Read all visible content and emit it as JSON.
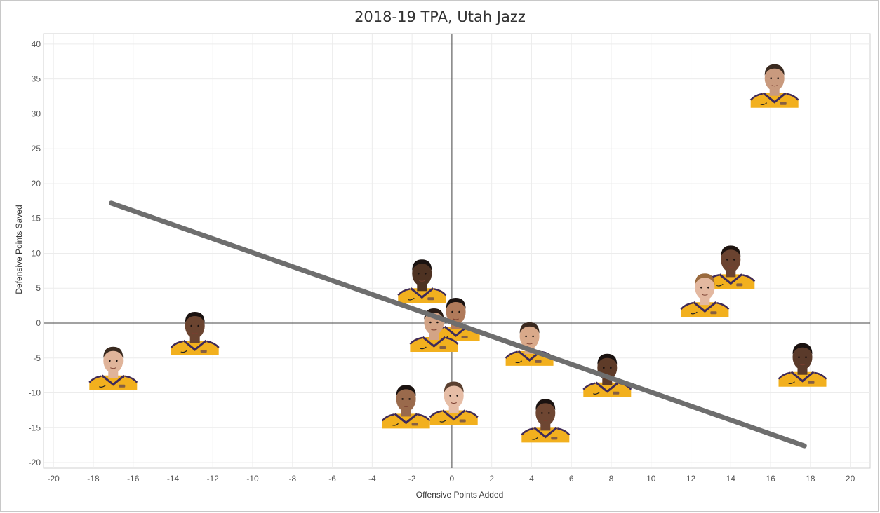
{
  "chart_data": {
    "type": "scatter",
    "title": "2018-19 TPA, Utah Jazz",
    "xlabel": "Offensive Points Added",
    "ylabel": "Defensive Points Saved",
    "xlim": [
      -20.5,
      21
    ],
    "ylim": [
      -20.8,
      41.5
    ],
    "xticks": [
      -20,
      -18,
      -16,
      -14,
      -12,
      -10,
      -8,
      -6,
      -4,
      -2,
      0,
      2,
      4,
      6,
      8,
      10,
      12,
      14,
      16,
      18,
      20
    ],
    "yticks": [
      -20,
      -15,
      -10,
      -5,
      0,
      5,
      10,
      15,
      20,
      25,
      30,
      35,
      40
    ],
    "grid": true,
    "points": [
      {
        "x": 16.2,
        "y": 34.5,
        "marker": "player-headshot",
        "skin": "#c99a7e",
        "hair": "#3a2a20"
      },
      {
        "x": 14.0,
        "y": 8.5,
        "marker": "player-headshot",
        "skin": "#6b4330",
        "hair": "#1e1410"
      },
      {
        "x": 12.7,
        "y": 4.5,
        "marker": "player-headshot",
        "skin": "#e3b8a0",
        "hair": "#9a6a3e"
      },
      {
        "x": 17.6,
        "y": -5.5,
        "marker": "player-headshot",
        "skin": "#5a3a2a",
        "hair": "#1a1210"
      },
      {
        "x": 7.8,
        "y": -7.0,
        "marker": "player-headshot",
        "skin": "#5e3b28",
        "hair": "#1a1210"
      },
      {
        "x": 3.9,
        "y": -2.5,
        "marker": "player-headshot",
        "skin": "#d9a98a",
        "hair": "#3b2a20"
      },
      {
        "x": 4.7,
        "y": -13.5,
        "marker": "player-headshot",
        "skin": "#6e4632",
        "hair": "#1a1210"
      },
      {
        "x": 0.1,
        "y": -11.0,
        "marker": "player-headshot",
        "skin": "#e6bda6",
        "hair": "#5a4030"
      },
      {
        "x": -2.3,
        "y": -11.5,
        "marker": "player-headshot",
        "skin": "#9a6a4c",
        "hair": "#1a1210"
      },
      {
        "x": -1.5,
        "y": 6.5,
        "marker": "player-headshot",
        "skin": "#4e3222",
        "hair": "#1a1210"
      },
      {
        "x": 0.2,
        "y": 1.0,
        "marker": "player-headshot",
        "skin": "#b07a5a",
        "hair": "#1a1210"
      },
      {
        "x": -0.9,
        "y": -0.5,
        "marker": "player-headshot",
        "skin": "#d3a486",
        "hair": "#2a1d16"
      },
      {
        "x": -12.9,
        "y": -1.0,
        "marker": "player-headshot",
        "skin": "#6b4430",
        "hair": "#1a1210"
      },
      {
        "x": -17.0,
        "y": -6.0,
        "marker": "player-headshot",
        "skin": "#e0b49a",
        "hair": "#3a2a20"
      }
    ],
    "trendline": {
      "x": [
        -17.1,
        17.7
      ],
      "y": [
        17.2,
        -17.6
      ],
      "color": "#6e6e6e"
    }
  }
}
